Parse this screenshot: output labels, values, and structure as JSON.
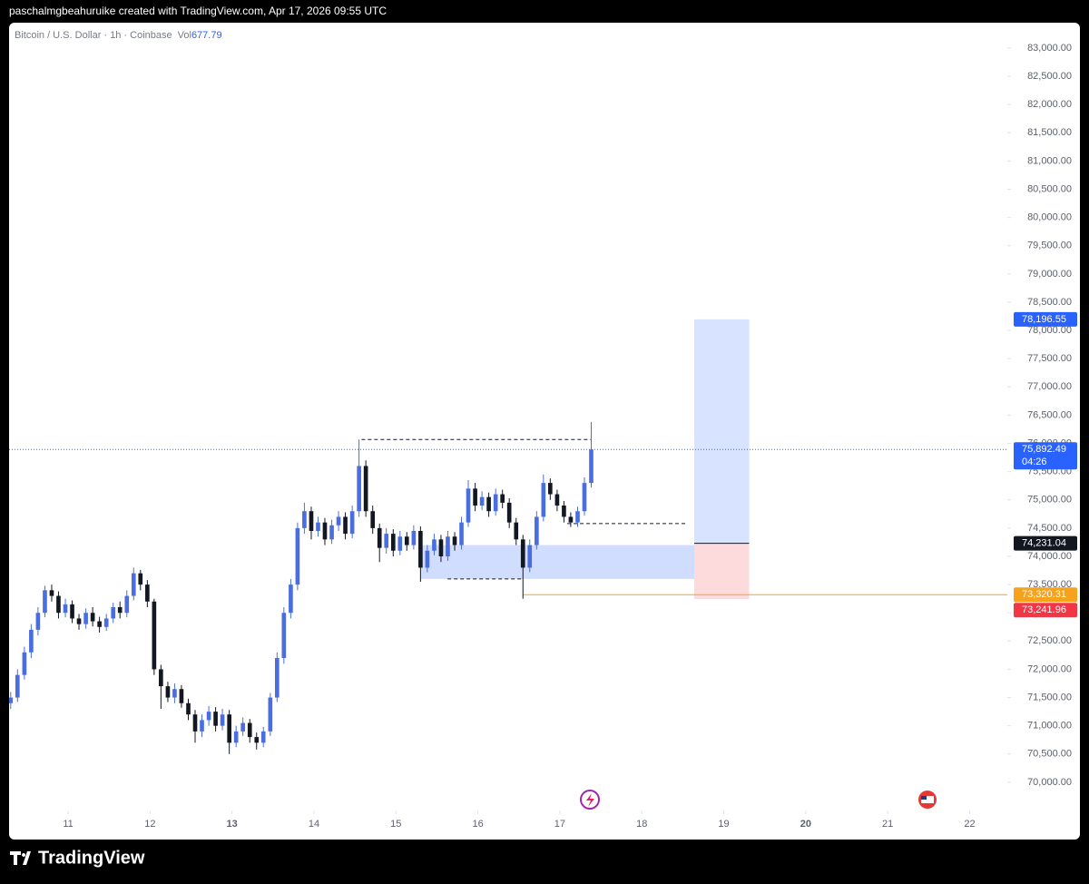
{
  "header": {
    "text": "paschalmgbeahuruike created with TradingView.com, Apr 17, 2026 09:55 UTC"
  },
  "footer": {
    "brand": "TradingView"
  },
  "chart_data": {
    "type": "candlestick",
    "title": "Bitcoin / U.S. Dollar · 1h · Coinbase",
    "volume_label": "Vol",
    "volume": 677.79,
    "up_color": "#4a6ee0",
    "down_color": "#131722",
    "xlim": [
      10.28,
      22.46
    ],
    "xticks": [
      11,
      12,
      13,
      14,
      15,
      16,
      17,
      18,
      19,
      20,
      21,
      22
    ],
    "emphasized_xticks": [
      13,
      20
    ],
    "ylim": [
      69500,
      83450
    ],
    "yticks": [
      {
        "value": 70000,
        "label": "70,000.00"
      },
      {
        "value": 70500,
        "label": "70,500.00"
      },
      {
        "value": 71000,
        "label": "71,000.00"
      },
      {
        "value": 71500,
        "label": "71,500.00"
      },
      {
        "value": 72000,
        "label": "72,000.00"
      },
      {
        "value": 72500,
        "label": "72,500.00"
      },
      {
        "value": 73000,
        "label": "73,000.00"
      },
      {
        "value": 73500,
        "label": "73,500.00"
      },
      {
        "value": 74000,
        "label": "74,000.00"
      },
      {
        "value": 74500,
        "label": "74,500.00"
      },
      {
        "value": 75000,
        "label": "75,000.00"
      },
      {
        "value": 75500,
        "label": "75,500.00"
      },
      {
        "value": 76000,
        "label": "76,000.00"
      },
      {
        "value": 76500,
        "label": "76,500.00"
      },
      {
        "value": 77000,
        "label": "77,000.00"
      },
      {
        "value": 77500,
        "label": "77,500.00"
      },
      {
        "value": 78000,
        "label": "78,000.00"
      },
      {
        "value": 78500,
        "label": "78,500.00"
      },
      {
        "value": 79000,
        "label": "79,000.00"
      },
      {
        "value": 79500,
        "label": "79,500.00"
      },
      {
        "value": 80000,
        "label": "80,000.00"
      },
      {
        "value": 80500,
        "label": "80,500.00"
      },
      {
        "value": 81000,
        "label": "81,000.00"
      },
      {
        "value": 81500,
        "label": "81,500.00"
      },
      {
        "value": 82000,
        "label": "82,000.00"
      },
      {
        "value": 82500,
        "label": "82,500.00"
      },
      {
        "value": 83000,
        "label": "83,000.00"
      }
    ],
    "x": [
      10.3,
      10.383,
      10.467,
      10.55,
      10.633,
      10.717,
      10.8,
      10.883,
      10.967,
      11.05,
      11.133,
      11.217,
      11.3,
      11.383,
      11.467,
      11.55,
      11.633,
      11.717,
      11.8,
      11.883,
      11.967,
      12.05,
      12.133,
      12.217,
      12.3,
      12.383,
      12.467,
      12.55,
      12.633,
      12.717,
      12.8,
      12.883,
      12.967,
      13.05,
      13.133,
      13.217,
      13.3,
      13.383,
      13.467,
      13.55,
      13.633,
      13.717,
      13.8,
      13.883,
      13.967,
      14.05,
      14.133,
      14.217,
      14.3,
      14.383,
      14.467,
      14.55,
      14.633,
      14.717,
      14.8,
      14.883,
      14.967,
      15.05,
      15.133,
      15.217,
      15.3,
      15.383,
      15.467,
      15.55,
      15.633,
      15.717,
      15.8,
      15.883,
      15.967,
      16.05,
      16.133,
      16.217,
      16.3,
      16.383,
      16.467,
      16.55,
      16.633,
      16.717,
      16.8,
      16.883,
      16.967,
      17.05,
      17.133,
      17.217,
      17.3,
      17.383
    ],
    "open": [
      71400,
      71500,
      71900,
      72300,
      72700,
      73000,
      73400,
      73300,
      73000,
      73150,
      72900,
      72800,
      73000,
      72850,
      72750,
      72900,
      73100,
      73000,
      73300,
      73700,
      73500,
      73200,
      72000,
      71700,
      71500,
      71650,
      71400,
      71200,
      70900,
      71100,
      71250,
      71000,
      71200,
      70700,
      70900,
      71050,
      70800,
      70700,
      70900,
      71500,
      72200,
      73000,
      73500,
      74500,
      74800,
      74450,
      74600,
      74300,
      74550,
      74700,
      74400,
      74800,
      75600,
      74800,
      74500,
      74150,
      74400,
      74100,
      74350,
      74200,
      74450,
      73800,
      74100,
      74300,
      74000,
      74350,
      74200,
      74600,
      75200,
      74900,
      75050,
      74800,
      75100,
      74950,
      74600,
      74300,
      73800,
      74200,
      74700,
      75300,
      75100,
      74900,
      74700,
      74600,
      74800,
      75300
    ],
    "high": [
      71600,
      72000,
      72400,
      72800,
      73100,
      73480,
      73500,
      73380,
      73250,
      73220,
      72980,
      73080,
      73100,
      72930,
      72980,
      73180,
      73200,
      73400,
      73800,
      73760,
      73580,
      73250,
      72080,
      71780,
      71750,
      71720,
      71480,
      71280,
      71200,
      71350,
      71330,
      71300,
      71280,
      71000,
      71150,
      71120,
      70880,
      70980,
      71580,
      72300,
      73100,
      73600,
      74600,
      74950,
      74880,
      74700,
      74680,
      74650,
      74800,
      74780,
      74900,
      76070,
      75700,
      74900,
      74580,
      74500,
      74480,
      74450,
      74430,
      74550,
      74530,
      74200,
      74400,
      74380,
      74450,
      74430,
      74700,
      75350,
      75300,
      75150,
      75130,
      75200,
      75180,
      75030,
      74680,
      74380,
      74300,
      74800,
      75450,
      75380,
      75180,
      74980,
      74780,
      74880,
      75400,
      76380
    ],
    "low": [
      71300,
      71420,
      71820,
      72200,
      72600,
      72920,
      73200,
      72900,
      72920,
      72820,
      72700,
      72720,
      72760,
      72650,
      72680,
      72820,
      72900,
      72920,
      73220,
      73400,
      73100,
      71900,
      71300,
      71420,
      71400,
      71320,
      71100,
      70700,
      70800,
      71000,
      70900,
      70920,
      70500,
      70620,
      70820,
      70700,
      70580,
      70620,
      70820,
      71420,
      72100,
      72900,
      73400,
      74400,
      74300,
      74350,
      74200,
      74220,
      74450,
      74300,
      74320,
      74700,
      74700,
      74400,
      73900,
      74050,
      74000,
      74020,
      74100,
      74120,
      73550,
      73720,
      74020,
      73900,
      73920,
      74100,
      74120,
      74520,
      74800,
      74820,
      74700,
      74720,
      74850,
      74500,
      74200,
      73250,
      73720,
      74120,
      74620,
      75000,
      74800,
      74600,
      74520,
      74520,
      74720,
      75220
    ],
    "close": [
      71500,
      71900,
      72300,
      72700,
      73000,
      73400,
      73300,
      73000,
      73150,
      72900,
      72800,
      73000,
      72850,
      72750,
      72900,
      73100,
      73000,
      73300,
      73700,
      73500,
      73200,
      72000,
      71700,
      71500,
      71650,
      71400,
      71200,
      70900,
      71100,
      71250,
      71000,
      71200,
      70700,
      70900,
      71050,
      70800,
      70700,
      70900,
      71500,
      72200,
      73000,
      73500,
      74500,
      74800,
      74450,
      74600,
      74300,
      74550,
      74700,
      74400,
      74800,
      75600,
      74800,
      74500,
      74150,
      74400,
      74100,
      74350,
      74200,
      74450,
      73800,
      74100,
      74300,
      74000,
      74350,
      74200,
      74600,
      75200,
      74900,
      75050,
      74800,
      75100,
      74950,
      74600,
      74300,
      73800,
      74200,
      74700,
      75300,
      75100,
      74900,
      74700,
      74600,
      74800,
      75300,
      75892.49
    ],
    "last_price": {
      "value": 75892.49,
      "label": "75,892.49",
      "countdown": "04:26",
      "color": "#2962ff"
    },
    "position": {
      "x": [
        18.64,
        19.31
      ],
      "target": {
        "value": 78196.55,
        "label": "78,196.55",
        "color": "#2962ff"
      },
      "entry": {
        "value": 74231.04,
        "label": "74,231.04",
        "color": "#131722"
      },
      "stop": {
        "value": 73241.96,
        "label": "73,241.96",
        "color": "#f23645"
      }
    },
    "alert_line": {
      "value": 73320.31,
      "label": "73,320.31",
      "x_start": 16.55,
      "color": "#f7a21b"
    },
    "zone": {
      "x": [
        15.3,
        18.64
      ],
      "y": [
        73600,
        74200
      ]
    },
    "dashed_lines": [
      {
        "x": [
          14.58,
          17.38
        ],
        "value": 76070
      },
      {
        "x": [
          17.09,
          18.55
        ],
        "value": 74580
      },
      {
        "x": [
          15.63,
          16.56
        ],
        "value": 73600
      }
    ]
  }
}
